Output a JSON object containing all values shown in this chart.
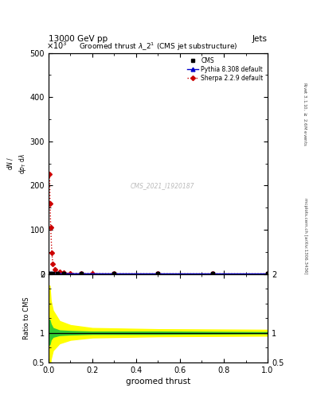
{
  "title": "13000 GeV pp",
  "title_right": "Jets",
  "plot_title": "Groomed thrust $\\lambda\\_2^1$ (CMS jet substructure)",
  "watermark": "CMS_2021_I1920187",
  "xlabel": "groomed thrust",
  "ylabel_ratio": "Ratio to CMS",
  "ylabel_right": "mcplots.cern.ch [arXiv:1306.3436]",
  "ylabel_right2": "Rivet 3.1.10, $\\geq$ 2.6M events",
  "scale_label": "$\\times10^3$",
  "cms_x": [
    0.005,
    0.01,
    0.02,
    0.04,
    0.07,
    0.15,
    0.3,
    0.5,
    0.75,
    1.0
  ],
  "cms_y": [
    1.2,
    1.1,
    1.0,
    0.8,
    0.5,
    0.3,
    0.15,
    0.08,
    0.04,
    0.02
  ],
  "pythia_x": [
    0.005,
    0.01,
    0.02,
    0.04,
    0.07,
    0.15,
    0.3,
    0.5,
    0.75,
    1.0
  ],
  "pythia_y": [
    1.3,
    1.15,
    1.05,
    0.85,
    0.52,
    0.31,
    0.15,
    0.08,
    0.04,
    0.02
  ],
  "sherpa_x": [
    0.005,
    0.007,
    0.01,
    0.015,
    0.02,
    0.03,
    0.05,
    0.07,
    0.1,
    0.15,
    0.2,
    0.3,
    0.5,
    0.75,
    1.0
  ],
  "sherpa_y": [
    225.0,
    160.0,
    105.0,
    48.0,
    22.0,
    10.0,
    3.8,
    2.0,
    1.0,
    0.55,
    0.35,
    0.18,
    0.08,
    0.04,
    0.02
  ],
  "ylim_main": [
    0.0,
    500.0
  ],
  "xlim": [
    0.0,
    1.0
  ],
  "ratio_ylim": [
    0.5,
    2.0
  ],
  "main_yticks": [
    0,
    100,
    200,
    300,
    400,
    500
  ],
  "main_xticks": [
    0.0,
    0.2,
    0.4,
    0.6,
    0.8,
    1.0
  ],
  "ratio_yticks": [
    0.5,
    1.0,
    2.0
  ],
  "ratio_ytick_labels": [
    "0.5",
    "1",
    "2"
  ],
  "yellow_band_x": [
    0.0,
    0.005,
    0.01,
    0.02,
    0.05,
    0.1,
    0.2,
    0.5,
    1.0
  ],
  "yellow_band_low": [
    0.35,
    0.35,
    0.55,
    0.7,
    0.82,
    0.88,
    0.92,
    0.94,
    0.95
  ],
  "yellow_band_high": [
    1.8,
    1.8,
    1.55,
    1.38,
    1.2,
    1.13,
    1.08,
    1.06,
    1.05
  ],
  "green_band_x": [
    0.0,
    0.005,
    0.01,
    0.02,
    0.05,
    0.1,
    0.2,
    0.5,
    1.0
  ],
  "green_band_low": [
    0.8,
    0.8,
    0.88,
    0.93,
    0.96,
    0.97,
    0.98,
    0.98,
    0.99
  ],
  "green_band_high": [
    1.22,
    1.22,
    1.15,
    1.08,
    1.04,
    1.03,
    1.02,
    1.02,
    1.01
  ]
}
